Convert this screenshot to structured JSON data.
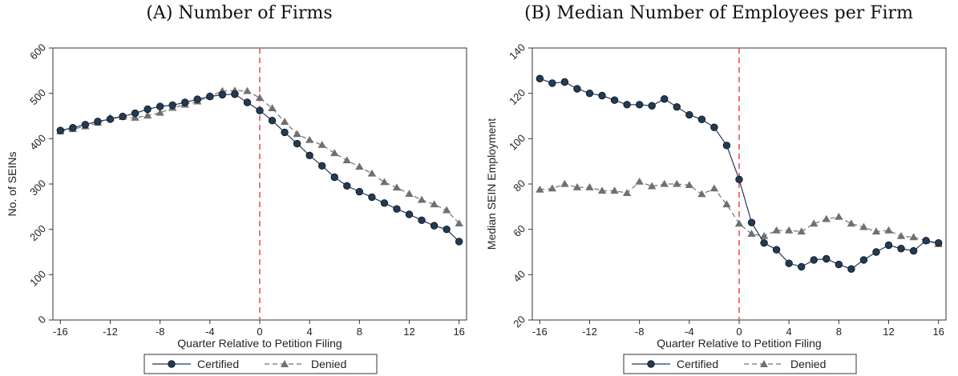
{
  "chart_data": [
    {
      "type": "line",
      "title": "(A) Number of Firms",
      "xlabel": "Quarter Relative to Petition Filing",
      "ylabel": "No. of SEINs",
      "xlim": [
        -16.6,
        16.6
      ],
      "ylim": [
        0,
        600
      ],
      "xticks": [
        -16,
        -12,
        -8,
        -4,
        0,
        4,
        8,
        12,
        16
      ],
      "yticks": [
        0,
        100,
        200,
        300,
        400,
        500,
        600
      ],
      "vline": 0,
      "legend_position": "bottom",
      "x": [
        -16,
        -15,
        -14,
        -13,
        -12,
        -11,
        -10,
        -9,
        -8,
        -7,
        -6,
        -5,
        -4,
        -3,
        -2,
        -1,
        0,
        1,
        2,
        3,
        4,
        5,
        6,
        7,
        8,
        9,
        10,
        11,
        12,
        13,
        14,
        15,
        16
      ],
      "series": [
        {
          "name": "Certified",
          "style": "solid-circle",
          "color": "#1f3b57",
          "values": [
            418,
            424,
            431,
            438,
            443,
            449,
            456,
            465,
            471,
            474,
            480,
            487,
            493,
            497,
            498,
            480,
            462,
            440,
            414,
            389,
            363,
            340,
            315,
            296,
            283,
            271,
            258,
            245,
            233,
            220,
            208,
            200,
            173
          ]
        },
        {
          "name": "Denied",
          "style": "dashed-triangle",
          "color": "#707070",
          "values": [
            416,
            421,
            427,
            435,
            446,
            448,
            446,
            451,
            457,
            468,
            475,
            482,
            494,
            505,
            506,
            505,
            490,
            467,
            437,
            410,
            397,
            386,
            368,
            352,
            338,
            323,
            304,
            292,
            278,
            265,
            255,
            242,
            213
          ]
        }
      ]
    },
    {
      "type": "line",
      "title": "(B) Median Number of Employees per Firm",
      "xlabel": "Quarter Relative to Petition Filing",
      "ylabel": "Median SEIN Employment",
      "xlim": [
        -16.6,
        16.6
      ],
      "ylim": [
        20,
        140
      ],
      "xticks": [
        -16,
        -12,
        -8,
        -4,
        0,
        4,
        8,
        12,
        16
      ],
      "yticks": [
        20,
        40,
        60,
        80,
        100,
        120,
        140
      ],
      "vline": 0,
      "legend_position": "bottom",
      "x": [
        -16,
        -15,
        -14,
        -13,
        -12,
        -11,
        -10,
        -9,
        -8,
        -7,
        -6,
        -5,
        -4,
        -3,
        -2,
        -1,
        0,
        1,
        2,
        3,
        4,
        5,
        6,
        7,
        8,
        9,
        10,
        11,
        12,
        13,
        14,
        15,
        16
      ],
      "series": [
        {
          "name": "Certified",
          "style": "solid-circle",
          "color": "#1f3b57",
          "values": [
            126.5,
            124.5,
            125,
            122,
            120,
            119,
            117,
            115,
            115,
            114.5,
            117.5,
            114,
            110.5,
            108.5,
            105,
            97,
            82,
            63,
            54,
            51,
            45,
            43.5,
            46.5,
            47,
            44.5,
            42.5,
            46.5,
            50,
            53,
            51.5,
            50.5,
            55,
            54
          ]
        },
        {
          "name": "Denied",
          "style": "dashed-triangle",
          "color": "#707070",
          "values": [
            77.5,
            78,
            80,
            78.5,
            78.5,
            77,
            77,
            76,
            81,
            79,
            80,
            80,
            79.5,
            75.5,
            78,
            71,
            62.5,
            58,
            57,
            59.5,
            59.5,
            59,
            62.5,
            64.5,
            65.5,
            62.5,
            61,
            59,
            59.5,
            57,
            56.5,
            55,
            53.5
          ]
        }
      ]
    }
  ]
}
